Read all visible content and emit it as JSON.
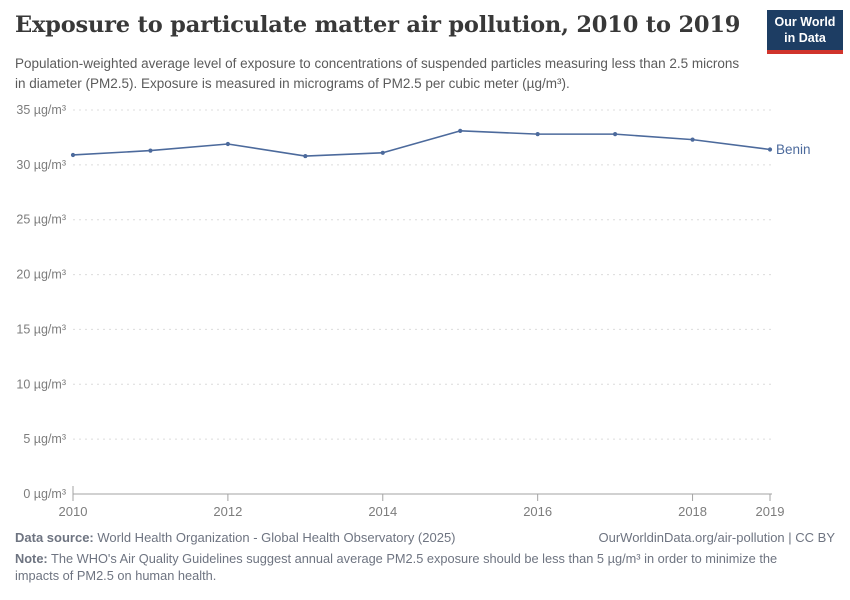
{
  "header": {
    "title": "Exposure to particulate matter air pollution, 2010 to 2019",
    "subtitle": "Population-weighted average level of exposure to concentrations of suspended particles measuring less than 2.5 microns in diameter (PM2.5). Exposure is measured in micrograms of PM2.5 per cubic meter (µg/m³).",
    "logo": {
      "line1": "Our World",
      "line2": "in Data",
      "bg_color": "#1d3d63",
      "accent_color": "#d0342c"
    }
  },
  "chart_data": {
    "type": "line",
    "title": "Exposure to particulate matter air pollution, 2010 to 2019",
    "xlabel": "",
    "ylabel": "µg/m³",
    "xlim": [
      2010,
      2019
    ],
    "ylim": [
      0,
      35
    ],
    "grid": "horizontal-dashed",
    "x": [
      2010,
      2011,
      2012,
      2013,
      2014,
      2015,
      2016,
      2017,
      2018,
      2019
    ],
    "series": [
      {
        "name": "Benin",
        "color": "#4c6a9c",
        "values": [
          30.9,
          31.3,
          31.9,
          30.8,
          31.1,
          33.1,
          32.8,
          32.8,
          32.3,
          31.4
        ]
      }
    ],
    "x_ticks": [
      2010,
      2012,
      2014,
      2016,
      2018,
      2019
    ],
    "y_ticks": [
      0,
      5,
      10,
      15,
      20,
      25,
      30,
      35
    ],
    "y_tick_suffix": " µg/m³",
    "legend_position": "end-of-line-label",
    "axis_color": "#a3a3a3",
    "gridline_color": "#dcdcdc",
    "tick_label_color": "#7d7d7d"
  },
  "footer": {
    "datasource_label": "Data source:",
    "datasource_text": " World Health Organization - Global Health Observatory (2025)",
    "rights": "OurWorldinData.org/air-pollution | CC BY",
    "note_label": "Note:",
    "note_text": " The WHO's Air Quality Guidelines suggest annual average PM2.5 exposure should be less than 5 µg/m³ in order to minimize the impacts of PM2.5 on human health."
  }
}
